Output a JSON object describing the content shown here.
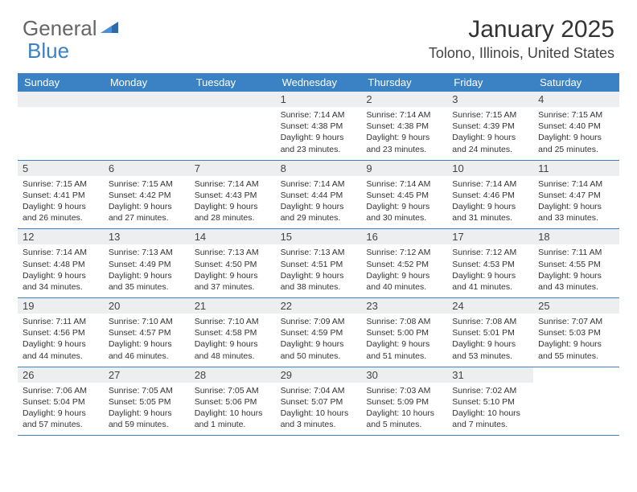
{
  "brand": {
    "part1": "General",
    "part2": "Blue"
  },
  "title": "January 2025",
  "location": "Tolono, Illinois, United States",
  "colors": {
    "header_bg": "#3b82c4",
    "header_text": "#ffffff",
    "daynum_bg": "#eceef0",
    "border": "#3b82c4",
    "text": "#333333",
    "logo_gray": "#666666",
    "logo_blue": "#3b82c4"
  },
  "day_labels": [
    "Sunday",
    "Monday",
    "Tuesday",
    "Wednesday",
    "Thursday",
    "Friday",
    "Saturday"
  ],
  "weeks": [
    [
      {
        "n": "",
        "sr": "",
        "ss": "",
        "dl": ""
      },
      {
        "n": "",
        "sr": "",
        "ss": "",
        "dl": ""
      },
      {
        "n": "",
        "sr": "",
        "ss": "",
        "dl": ""
      },
      {
        "n": "1",
        "sr": "7:14 AM",
        "ss": "4:38 PM",
        "dl": "9 hours and 23 minutes."
      },
      {
        "n": "2",
        "sr": "7:14 AM",
        "ss": "4:38 PM",
        "dl": "9 hours and 23 minutes."
      },
      {
        "n": "3",
        "sr": "7:15 AM",
        "ss": "4:39 PM",
        "dl": "9 hours and 24 minutes."
      },
      {
        "n": "4",
        "sr": "7:15 AM",
        "ss": "4:40 PM",
        "dl": "9 hours and 25 minutes."
      }
    ],
    [
      {
        "n": "5",
        "sr": "7:15 AM",
        "ss": "4:41 PM",
        "dl": "9 hours and 26 minutes."
      },
      {
        "n": "6",
        "sr": "7:15 AM",
        "ss": "4:42 PM",
        "dl": "9 hours and 27 minutes."
      },
      {
        "n": "7",
        "sr": "7:14 AM",
        "ss": "4:43 PM",
        "dl": "9 hours and 28 minutes."
      },
      {
        "n": "8",
        "sr": "7:14 AM",
        "ss": "4:44 PM",
        "dl": "9 hours and 29 minutes."
      },
      {
        "n": "9",
        "sr": "7:14 AM",
        "ss": "4:45 PM",
        "dl": "9 hours and 30 minutes."
      },
      {
        "n": "10",
        "sr": "7:14 AM",
        "ss": "4:46 PM",
        "dl": "9 hours and 31 minutes."
      },
      {
        "n": "11",
        "sr": "7:14 AM",
        "ss": "4:47 PM",
        "dl": "9 hours and 33 minutes."
      }
    ],
    [
      {
        "n": "12",
        "sr": "7:14 AM",
        "ss": "4:48 PM",
        "dl": "9 hours and 34 minutes."
      },
      {
        "n": "13",
        "sr": "7:13 AM",
        "ss": "4:49 PM",
        "dl": "9 hours and 35 minutes."
      },
      {
        "n": "14",
        "sr": "7:13 AM",
        "ss": "4:50 PM",
        "dl": "9 hours and 37 minutes."
      },
      {
        "n": "15",
        "sr": "7:13 AM",
        "ss": "4:51 PM",
        "dl": "9 hours and 38 minutes."
      },
      {
        "n": "16",
        "sr": "7:12 AM",
        "ss": "4:52 PM",
        "dl": "9 hours and 40 minutes."
      },
      {
        "n": "17",
        "sr": "7:12 AM",
        "ss": "4:53 PM",
        "dl": "9 hours and 41 minutes."
      },
      {
        "n": "18",
        "sr": "7:11 AM",
        "ss": "4:55 PM",
        "dl": "9 hours and 43 minutes."
      }
    ],
    [
      {
        "n": "19",
        "sr": "7:11 AM",
        "ss": "4:56 PM",
        "dl": "9 hours and 44 minutes."
      },
      {
        "n": "20",
        "sr": "7:10 AM",
        "ss": "4:57 PM",
        "dl": "9 hours and 46 minutes."
      },
      {
        "n": "21",
        "sr": "7:10 AM",
        "ss": "4:58 PM",
        "dl": "9 hours and 48 minutes."
      },
      {
        "n": "22",
        "sr": "7:09 AM",
        "ss": "4:59 PM",
        "dl": "9 hours and 50 minutes."
      },
      {
        "n": "23",
        "sr": "7:08 AM",
        "ss": "5:00 PM",
        "dl": "9 hours and 51 minutes."
      },
      {
        "n": "24",
        "sr": "7:08 AM",
        "ss": "5:01 PM",
        "dl": "9 hours and 53 minutes."
      },
      {
        "n": "25",
        "sr": "7:07 AM",
        "ss": "5:03 PM",
        "dl": "9 hours and 55 minutes."
      }
    ],
    [
      {
        "n": "26",
        "sr": "7:06 AM",
        "ss": "5:04 PM",
        "dl": "9 hours and 57 minutes."
      },
      {
        "n": "27",
        "sr": "7:05 AM",
        "ss": "5:05 PM",
        "dl": "9 hours and 59 minutes."
      },
      {
        "n": "28",
        "sr": "7:05 AM",
        "ss": "5:06 PM",
        "dl": "10 hours and 1 minute."
      },
      {
        "n": "29",
        "sr": "7:04 AM",
        "ss": "5:07 PM",
        "dl": "10 hours and 3 minutes."
      },
      {
        "n": "30",
        "sr": "7:03 AM",
        "ss": "5:09 PM",
        "dl": "10 hours and 5 minutes."
      },
      {
        "n": "31",
        "sr": "7:02 AM",
        "ss": "5:10 PM",
        "dl": "10 hours and 7 minutes."
      },
      {
        "n": "",
        "sr": "",
        "ss": "",
        "dl": ""
      }
    ]
  ],
  "labels": {
    "sunrise": "Sunrise:",
    "sunset": "Sunset:",
    "daylight": "Daylight:"
  }
}
